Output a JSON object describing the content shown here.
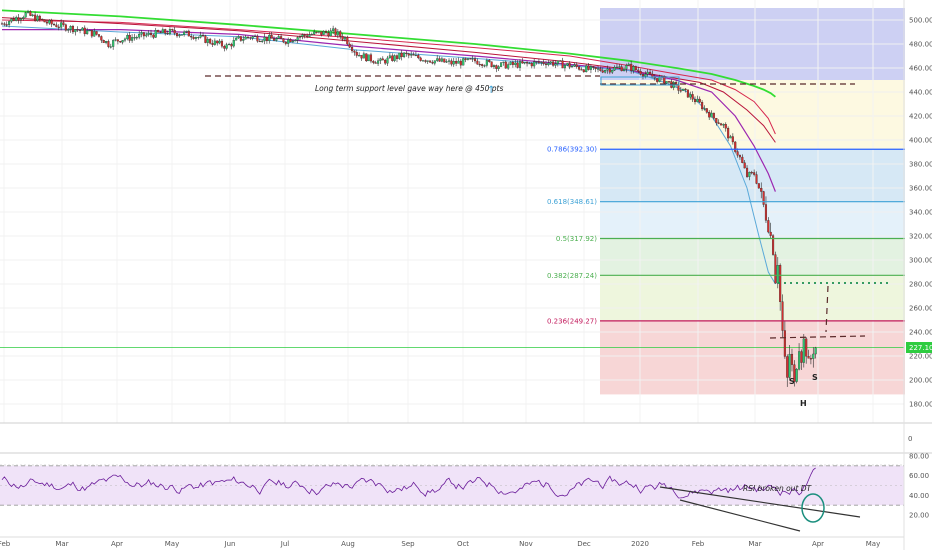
{
  "chart_data": [
    {
      "type": "candlestick",
      "y_ticks": [
        "500.00",
        "480.00",
        "460.00",
        "440.00",
        "420.00",
        "400.00",
        "380.00",
        "360.00",
        "340.00",
        "320.00",
        "300.00",
        "280.00",
        "260.00",
        "240.00",
        "220.00",
        "200.00",
        "180.00"
      ],
      "ylim": [
        175,
        510
      ],
      "x_ticks": [
        "Feb",
        "Mar",
        "Apr",
        "May",
        "Jun",
        "Jul",
        "Aug",
        "Sep",
        "Oct",
        "Nov",
        "Dec",
        "2020",
        "Feb",
        "Mar",
        "Apr",
        "May"
      ],
      "last_price_label": "227.10",
      "price_path": [
        [
          0,
          497
        ],
        [
          10,
          505
        ],
        [
          20,
          497
        ],
        [
          30,
          493
        ],
        [
          40,
          488
        ],
        [
          45,
          480
        ],
        [
          50,
          484
        ],
        [
          60,
          487
        ],
        [
          70,
          490
        ],
        [
          80,
          488
        ],
        [
          88,
          482
        ],
        [
          95,
          478
        ],
        [
          100,
          484
        ],
        [
          105,
          486
        ],
        [
          110,
          485
        ],
        [
          120,
          483
        ],
        [
          125,
          486
        ],
        [
          130,
          488
        ],
        [
          140,
          490
        ],
        [
          145,
          485
        ],
        [
          150,
          472
        ],
        [
          155,
          468
        ],
        [
          160,
          465
        ],
        [
          165,
          468
        ],
        [
          170,
          471
        ],
        [
          180,
          467
        ],
        [
          190,
          464
        ],
        [
          200,
          466
        ],
        [
          210,
          462
        ],
        [
          220,
          463
        ],
        [
          230,
          465
        ],
        [
          240,
          462
        ],
        [
          250,
          458
        ],
        [
          260,
          460
        ],
        [
          265,
          461
        ],
        [
          270,
          457
        ],
        [
          275,
          452
        ],
        [
          280,
          450
        ],
        [
          285,
          444
        ],
        [
          290,
          438
        ],
        [
          295,
          430
        ],
        [
          300,
          420
        ],
        [
          305,
          412
        ],
        [
          308,
          400
        ],
        [
          312,
          385
        ],
        [
          315,
          370
        ],
        [
          318,
          372
        ],
        [
          320,
          360
        ],
        [
          322,
          345
        ],
        [
          324,
          330
        ],
        [
          326,
          310
        ],
        [
          327,
          285
        ],
        [
          328,
          300
        ],
        [
          329,
          265
        ],
        [
          330,
          240
        ],
        [
          331,
          215
        ],
        [
          332,
          200
        ],
        [
          333,
          222
        ],
        [
          334,
          210
        ],
        [
          335,
          195
        ],
        [
          336,
          215
        ],
        [
          337,
          230
        ],
        [
          338,
          220
        ],
        [
          339,
          232
        ],
        [
          340,
          225
        ],
        [
          341,
          212
        ],
        [
          342,
          218
        ],
        [
          343,
          226
        ],
        [
          344,
          227
        ]
      ],
      "ma_green": [
        [
          0,
          508
        ],
        [
          50,
          503
        ],
        [
          100,
          496
        ],
        [
          150,
          488
        ],
        [
          200,
          480
        ],
        [
          240,
          472
        ],
        [
          265,
          466
        ],
        [
          285,
          460
        ],
        [
          300,
          455
        ],
        [
          310,
          450
        ],
        [
          318,
          445
        ],
        [
          322,
          442
        ],
        [
          325,
          439
        ],
        [
          327,
          436
        ]
      ],
      "ma_red_long": [
        [
          0,
          500
        ],
        [
          50,
          498
        ],
        [
          100,
          492
        ],
        [
          150,
          485
        ],
        [
          200,
          477
        ],
        [
          240,
          470
        ],
        [
          265,
          462
        ],
        [
          285,
          455
        ],
        [
          300,
          450
        ],
        [
          310,
          442
        ],
        [
          318,
          432
        ],
        [
          324,
          418
        ],
        [
          327,
          405
        ]
      ],
      "ma_red_mid": [
        [
          0,
          502
        ],
        [
          50,
          497
        ],
        [
          100,
          491
        ],
        [
          150,
          482
        ],
        [
          200,
          473
        ],
        [
          240,
          465
        ],
        [
          260,
          460
        ],
        [
          280,
          453
        ],
        [
          295,
          448
        ],
        [
          305,
          440
        ],
        [
          315,
          425
        ],
        [
          322,
          412
        ],
        [
          327,
          398
        ]
      ],
      "ma_purple": [
        [
          0,
          492
        ],
        [
          50,
          492
        ],
        [
          100,
          488
        ],
        [
          150,
          478
        ],
        [
          200,
          470
        ],
        [
          240,
          463
        ],
        [
          265,
          458
        ],
        [
          285,
          450
        ],
        [
          300,
          440
        ],
        [
          310,
          420
        ],
        [
          318,
          395
        ],
        [
          324,
          372
        ],
        [
          327,
          357
        ]
      ],
      "ma_blue": [
        [
          0,
          495
        ],
        [
          50,
          490
        ],
        [
          100,
          486
        ],
        [
          150,
          475
        ],
        [
          200,
          468
        ],
        [
          240,
          462
        ],
        [
          265,
          458
        ],
        [
          280,
          448
        ],
        [
          290,
          440
        ],
        [
          300,
          420
        ],
        [
          308,
          395
        ],
        [
          315,
          360
        ],
        [
          320,
          320
        ],
        [
          324,
          290
        ],
        [
          327,
          280
        ]
      ],
      "fib_levels": [
        {
          "label": "0.786(392.30)",
          "value": 392.3,
          "color": "#2962ff"
        },
        {
          "label": "0.618(348.61)",
          "value": 348.61,
          "color": "#3ea2d6"
        },
        {
          "label": "0.5(317.92)",
          "value": 317.92,
          "color": "#4caf50"
        },
        {
          "label": "0.382(287.24)",
          "value": 287.24,
          "color": "#4caf50"
        },
        {
          "label": "0.236(249.27)",
          "value": 249.27,
          "color": "#c2185b"
        }
      ],
      "annotations": {
        "support_text": "Long term support level gave way here @ 450 pts",
        "shoulder_left": "S",
        "shoulder_right": "S",
        "head": "H"
      }
    },
    {
      "type": "line",
      "y_ticks": [
        "0"
      ]
    },
    {
      "type": "line",
      "y_ticks": [
        "80.00",
        "60.00",
        "40.00",
        "20.00"
      ],
      "ylim": [
        10,
        85
      ],
      "rsi_annotation": "RSI broken out DT"
    }
  ]
}
